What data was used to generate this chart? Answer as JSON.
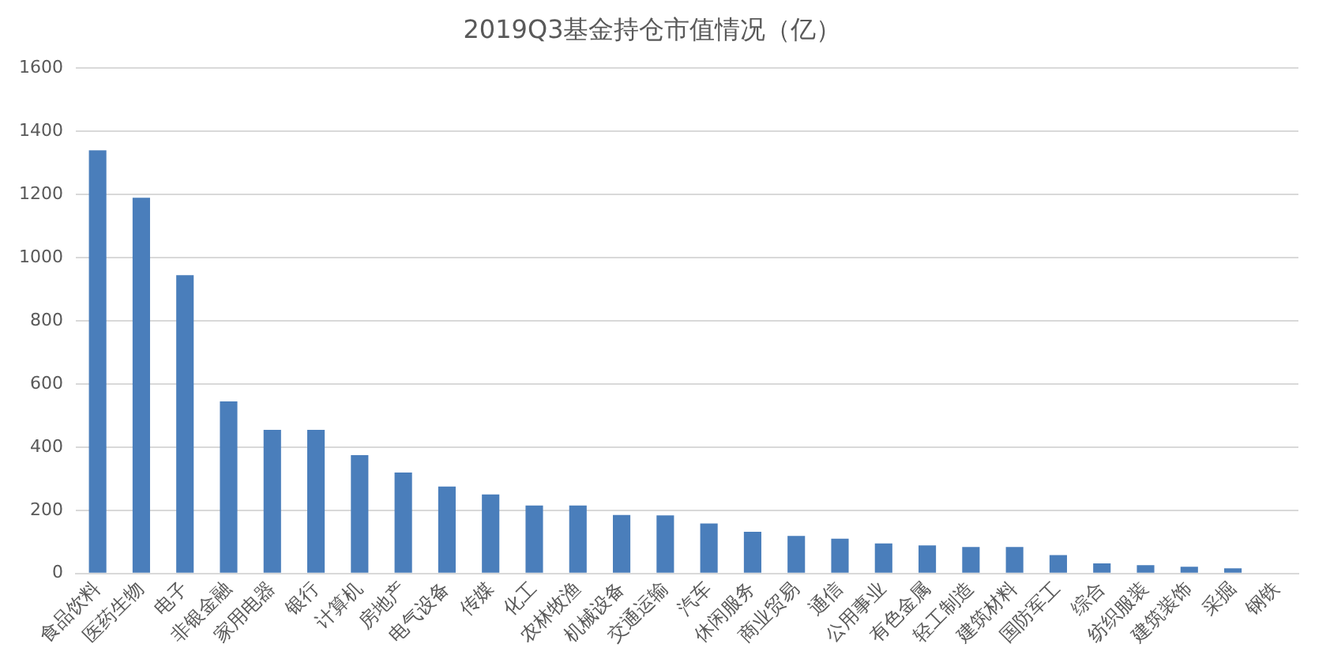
{
  "chart_data": {
    "type": "bar",
    "title": "2019Q3基金持仓市值情况（亿）",
    "categories": [
      "食品饮料",
      "医药生物",
      "电子",
      "非银金融",
      "家用电器",
      "银行",
      "计算机",
      "房地产",
      "电气设备",
      "传媒",
      "化工",
      "农林牧渔",
      "机械设备",
      "交通运输",
      "汽车",
      "休闲服务",
      "商业贸易",
      "通信",
      "公用事业",
      "有色金属",
      "轻工制造",
      "建筑材料",
      "国防军工",
      "综合",
      "纺织服装",
      "建筑装饰",
      "采掘",
      "钢铁"
    ],
    "values": [
      1340,
      1190,
      945,
      545,
      455,
      455,
      375,
      320,
      275,
      250,
      215,
      215,
      185,
      184,
      158,
      132,
      119,
      110,
      95,
      89,
      84,
      84,
      58,
      32,
      26,
      21,
      16,
      0
    ],
    "color": "#4a7ebb",
    "ylim": [
      0,
      1600
    ],
    "yticks": [
      0,
      200,
      400,
      600,
      800,
      1000,
      1200,
      1400,
      1600
    ],
    "grid": "y"
  }
}
